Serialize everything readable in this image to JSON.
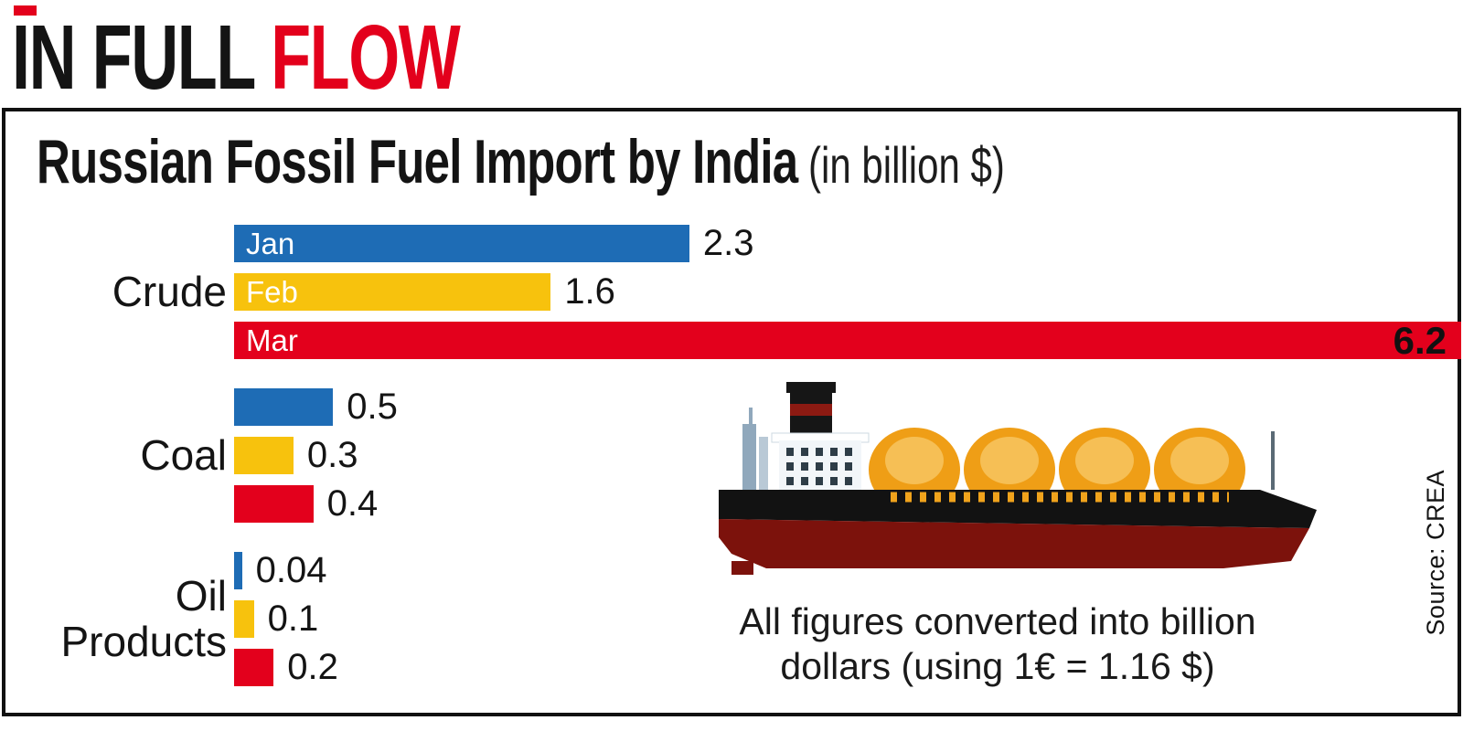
{
  "accent_color": "#e3001c",
  "header": {
    "title_part1": "IN FULL ",
    "title_part2": "FLOW"
  },
  "panel": {
    "title": "Russian Fossil Fuel Import by India",
    "title_suffix": " (in billion $)",
    "note_lines": [
      "All figures converted into billion",
      "dollars (using 1€ = 1.16 $)"
    ],
    "source": "Source: CREA"
  },
  "chart_data": {
    "type": "bar",
    "orientation": "horizontal",
    "title": "Russian Fossil Fuel Import by India (in billion $)",
    "categories": [
      "Crude",
      "Coal",
      "Oil Products"
    ],
    "series": [
      {
        "name": "Jan",
        "color": "#1e6cb5",
        "values": [
          2.3,
          0.5,
          0.04
        ]
      },
      {
        "name": "Feb",
        "color": "#f7c20d",
        "values": [
          1.6,
          0.3,
          0.1
        ]
      },
      {
        "name": "Mar",
        "color": "#e3001c",
        "values": [
          6.2,
          0.4,
          0.2
        ]
      }
    ],
    "xmax": 6.2,
    "month_labels_group": 0,
    "grid": false,
    "legend_position": "inline-bar-labels"
  }
}
